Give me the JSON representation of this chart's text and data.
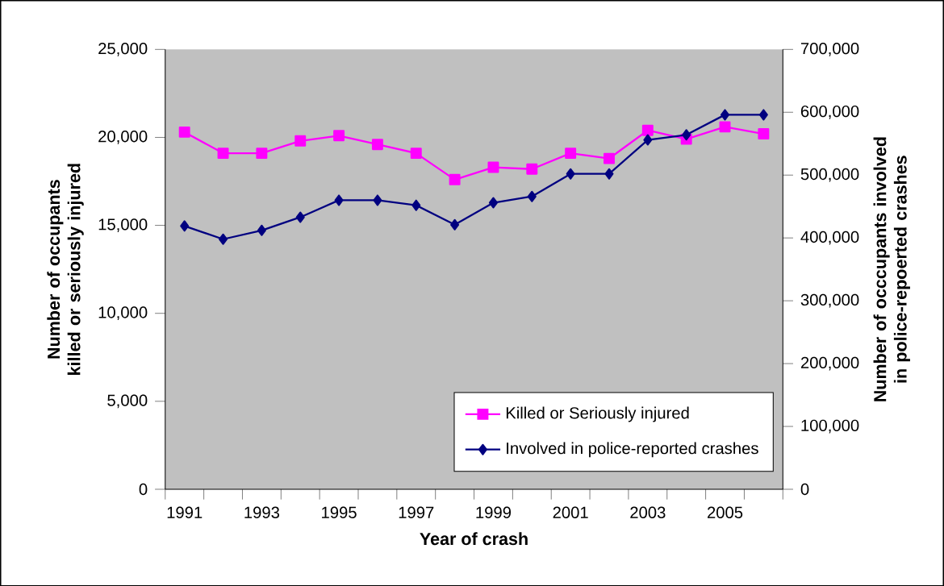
{
  "chart_data": {
    "type": "line",
    "xlabel": "Year of crash",
    "ylabel": "Number of occupants killed or seriously injured",
    "y2label": "Number of occcupants involved in police-repoerted crashes",
    "categories": [
      "1991",
      null,
      "1993",
      null,
      "1995",
      null,
      "1997",
      null,
      "1999",
      null,
      "2001",
      null,
      "2003",
      null,
      "2005",
      null
    ],
    "series": [
      {
        "name": "Killed or Seriously injured",
        "color": "#ff00ff",
        "marker": "square",
        "values": [
          20300,
          19100,
          19100,
          19800,
          20100,
          19600,
          19100,
          17600,
          18300,
          18200,
          19100,
          18800,
          20400,
          19900,
          20600,
          20200
        ]
      },
      {
        "name": "Involved in police-reported crashes",
        "color": "#000080",
        "marker": "diamond",
        "axis": "y2",
        "values": [
          419000,
          398000,
          412000,
          433000,
          460000,
          460000,
          452000,
          421000,
          456000,
          466000,
          502000,
          502000,
          556000,
          564000,
          596000,
          596000
        ]
      }
    ],
    "ylim": [
      0,
      25000
    ],
    "yticks": [
      0,
      {
        "value": 5000,
        "label": "5,000"
      },
      {
        "value": 10000,
        "label": "10,000"
      },
      {
        "value": 15000,
        "label": "15,000"
      },
      {
        "value": 20000,
        "label": "20,000"
      },
      {
        "value": 25000,
        "label": "25,000"
      }
    ],
    "y2lim": [
      0,
      700000
    ],
    "y2ticks": [
      0,
      {
        "value": 100000,
        "label": "100,000"
      },
      {
        "value": 200000,
        "label": "200,000"
      },
      {
        "value": 300000,
        "label": "300,000"
      },
      {
        "value": 400000,
        "label": "400,000"
      },
      {
        "value": 500000,
        "label": "500,000"
      },
      {
        "value": 600000,
        "label": "600,000"
      },
      {
        "value": 700000,
        "label": "700,000"
      }
    ],
    "legend": "bottom right",
    "grid": false
  }
}
